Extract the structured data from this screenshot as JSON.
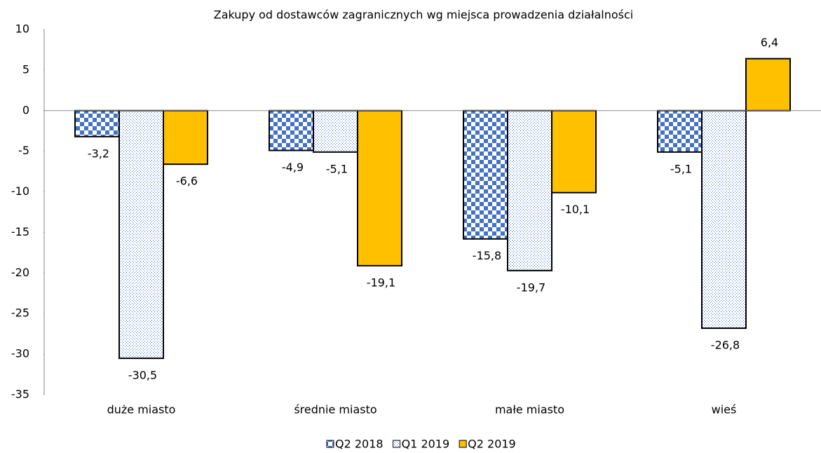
{
  "chart_data": {
    "type": "bar",
    "title": "Zakupy od dostawców zagranicznych wg miejsca prowadzenia działalności",
    "categories": [
      "duże miasto",
      "średnie miasto",
      "małe miasto",
      "wieś"
    ],
    "series": [
      {
        "name": "Q2 2018",
        "color": "#4472c4",
        "pattern": "checker",
        "values": [
          -3.2,
          -4.9,
          -15.8,
          -5.1
        ],
        "value_labels": [
          "-3,2",
          "-4,9",
          "-15,8",
          "-5,1"
        ]
      },
      {
        "name": "Q1 2019",
        "color": "#4472c4",
        "pattern": "dots",
        "values": [
          -30.5,
          -5.1,
          -19.7,
          -26.8
        ],
        "value_labels": [
          "-30,5",
          "-5,1",
          "-19,7",
          "-26,8"
        ]
      },
      {
        "name": "Q2 2019",
        "color": "#ffc000",
        "pattern": "solid",
        "values": [
          -6.6,
          -19.1,
          -10.1,
          6.4
        ],
        "value_labels": [
          "-6,6",
          "-19,1",
          "-10,1",
          "6,4"
        ]
      }
    ],
    "ylim": [
      -35,
      10
    ],
    "yticks": [
      -35,
      -30,
      -25,
      -20,
      -15,
      -10,
      -5,
      0,
      5,
      10
    ],
    "grid": false
  }
}
